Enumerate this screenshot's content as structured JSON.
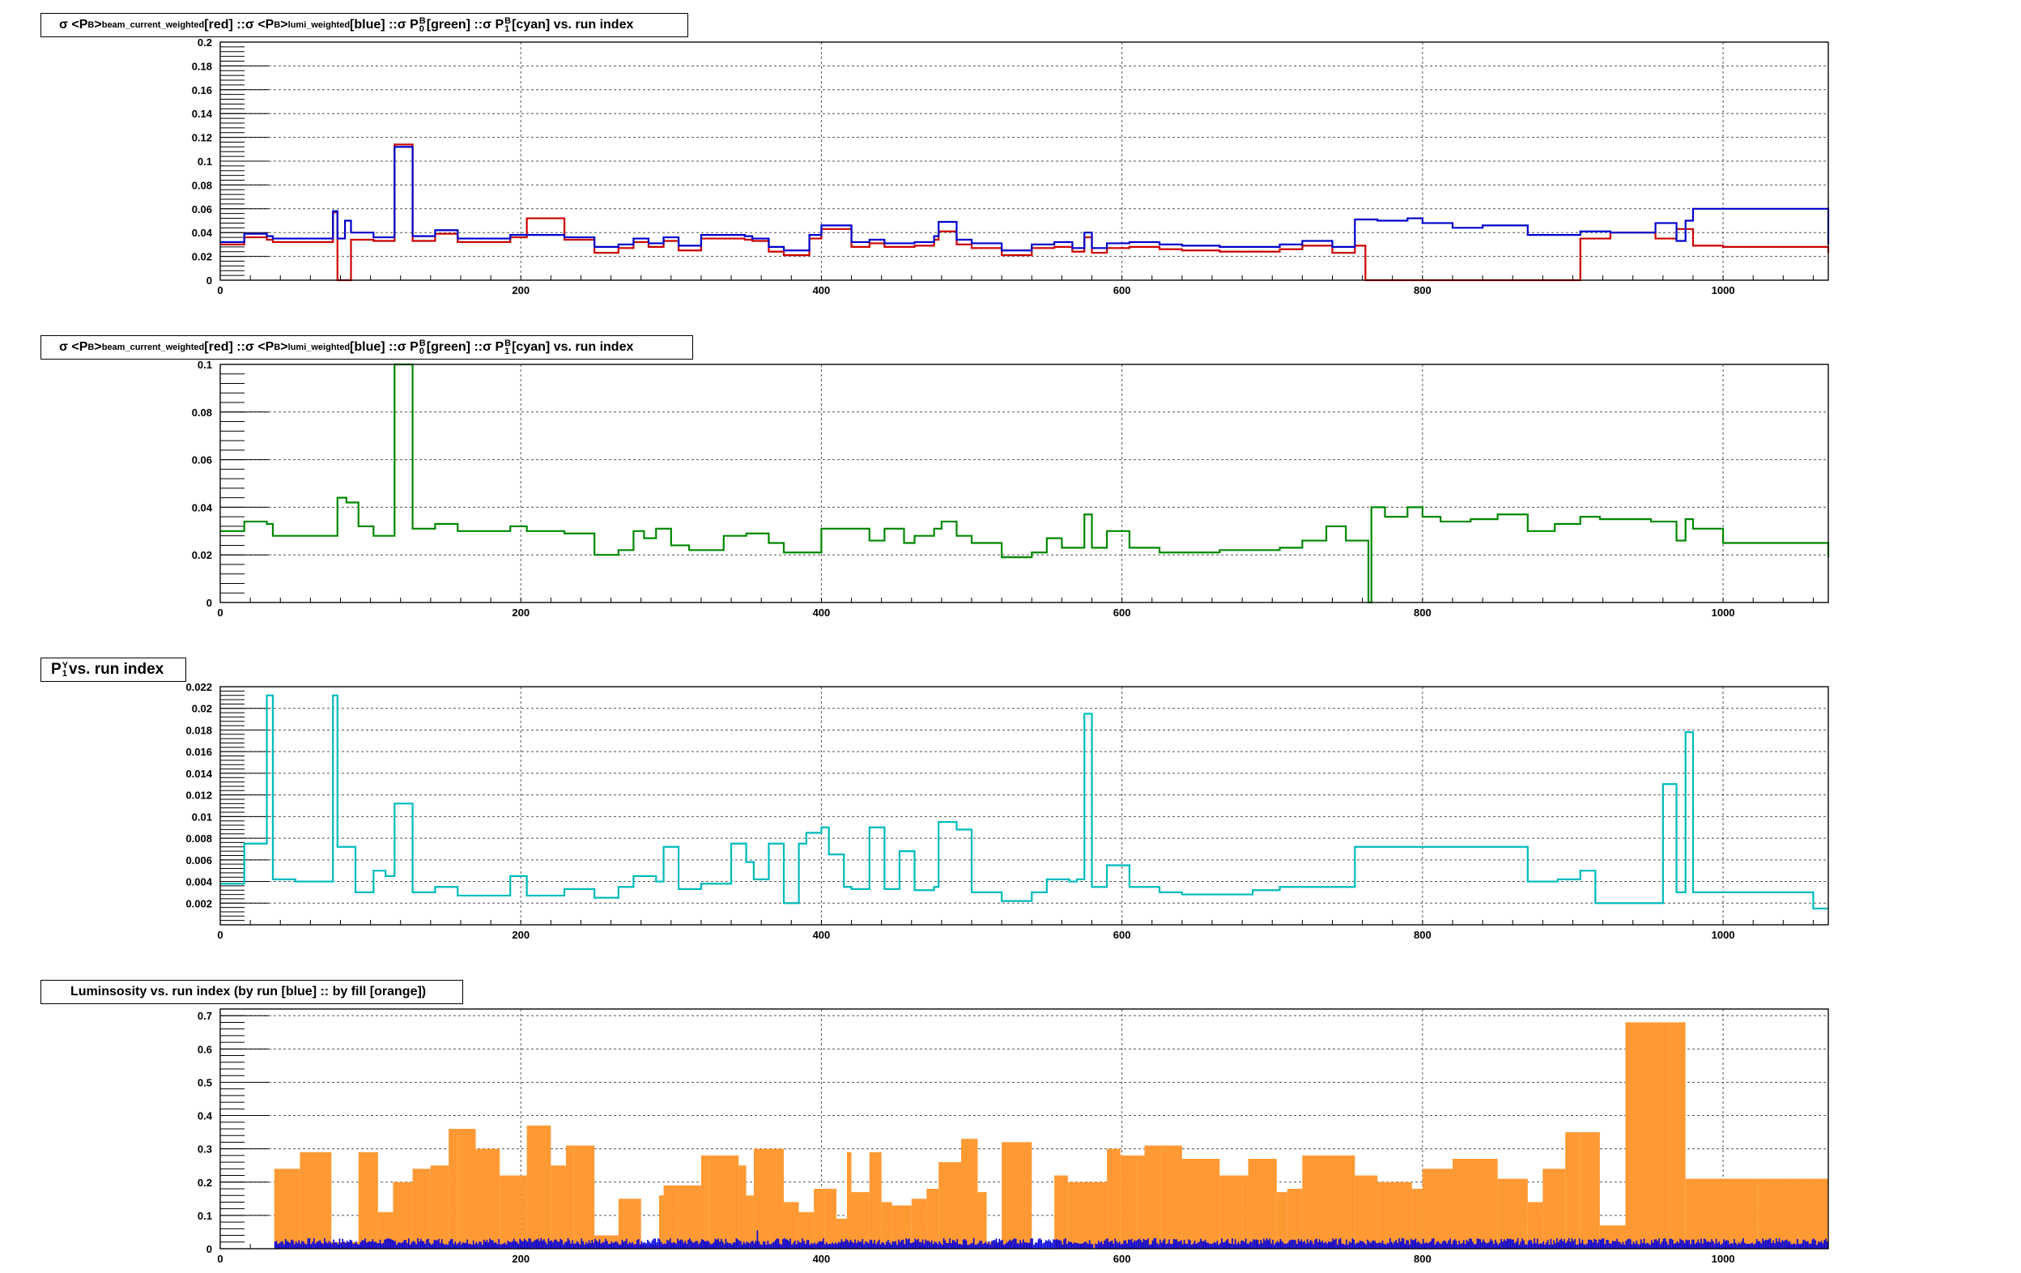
{
  "chart_data": [
    {
      "type": "line",
      "title": "σ <P^B>_beam_current_weighted[red] :: σ <P^B>_lumi_weighted[blue] :: σ P^B_0[green] :: σ P^B_1[cyan] vs. run index",
      "title_parts": {
        "sigma": "σ",
        "P": "P",
        "B": "B",
        "bcw": "beam_current_weighted",
        "lw": "lumi_weighted",
        "red": "[red] :: ",
        "blue": "[blue] :: ",
        "green": "[green] :: ",
        "cyan": "[cyan] vs. run index",
        "zero": "0",
        "one": "1"
      },
      "xlim": [
        0,
        1070
      ],
      "ylim": [
        0,
        0.2
      ],
      "xticks": [
        "0",
        "200",
        "400",
        "600",
        "800",
        "1000"
      ],
      "yticks": [
        "0",
        "0.02",
        "0.04",
        "0.06",
        "0.08",
        "0.1",
        "0.12",
        "0.14",
        "0.16",
        "0.18",
        "0.2"
      ],
      "grid": true,
      "colors": {
        "red": "#cc0000",
        "blue": "#0000cc"
      },
      "series": [
        {
          "name": "red",
          "color": "#cc0000",
          "x": [
            0,
            16,
            31,
            35,
            50,
            75,
            78,
            87,
            102,
            116,
            128,
            143,
            158,
            193,
            204,
            229,
            249,
            265,
            275,
            285,
            295,
            305,
            320,
            349,
            354,
            365,
            375,
            392,
            400,
            420,
            432,
            442,
            462,
            475,
            478,
            490,
            500,
            520,
            540,
            555,
            567,
            575,
            580,
            590,
            605,
            625,
            640,
            665,
            705,
            720,
            740,
            755,
            762,
            770,
            780,
            800,
            870,
            905,
            925,
            955,
            969,
            980,
            1000,
            1040,
            1070
          ],
          "y": [
            0.03,
            0.036,
            0.034,
            0.032,
            0.032,
            0.057,
            0.0,
            0.034,
            0.033,
            0.114,
            0.033,
            0.039,
            0.032,
            0.036,
            0.052,
            0.034,
            0.023,
            0.027,
            0.032,
            0.028,
            0.033,
            0.025,
            0.035,
            0.034,
            0.033,
            0.024,
            0.021,
            0.035,
            0.043,
            0.028,
            0.031,
            0.028,
            0.029,
            0.034,
            0.041,
            0.03,
            0.027,
            0.021,
            0.027,
            0.028,
            0.024,
            0.036,
            0.023,
            0.027,
            0.028,
            0.026,
            0.025,
            0.024,
            0.026,
            0.029,
            0.023,
            0.029,
            0.0,
            0.0,
            0.0,
            0.0,
            0.0,
            0.035,
            0.04,
            0.035,
            0.043,
            0.029,
            0.028,
            0.028,
            0.023
          ]
        },
        {
          "name": "blue",
          "color": "#0000cc",
          "x": [
            0,
            16,
            31,
            35,
            50,
            75,
            78,
            83,
            87,
            102,
            116,
            128,
            143,
            158,
            193,
            204,
            229,
            249,
            265,
            275,
            285,
            295,
            305,
            320,
            349,
            354,
            365,
            375,
            392,
            400,
            420,
            432,
            442,
            462,
            475,
            478,
            490,
            500,
            520,
            540,
            555,
            567,
            575,
            580,
            590,
            605,
            625,
            640,
            665,
            705,
            720,
            740,
            755,
            770,
            790,
            800,
            820,
            840,
            870,
            905,
            925,
            955,
            969,
            975,
            980,
            1000,
            1040,
            1070
          ],
          "y": [
            0.032,
            0.039,
            0.037,
            0.035,
            0.035,
            0.058,
            0.035,
            0.05,
            0.04,
            0.036,
            0.112,
            0.037,
            0.042,
            0.035,
            0.038,
            0.038,
            0.036,
            0.028,
            0.03,
            0.035,
            0.031,
            0.036,
            0.029,
            0.038,
            0.037,
            0.035,
            0.028,
            0.025,
            0.038,
            0.046,
            0.032,
            0.034,
            0.031,
            0.032,
            0.037,
            0.049,
            0.034,
            0.031,
            0.025,
            0.03,
            0.032,
            0.027,
            0.04,
            0.027,
            0.031,
            0.032,
            0.03,
            0.029,
            0.028,
            0.03,
            0.033,
            0.028,
            0.051,
            0.05,
            0.052,
            0.048,
            0.044,
            0.046,
            0.038,
            0.041,
            0.04,
            0.048,
            0.033,
            0.05,
            0.06,
            0.06,
            0.06,
            0.03
          ]
        }
      ]
    },
    {
      "type": "line",
      "title": "σ <P^B>_beam_current_weighted[red] :: σ <P^B>_lumi_weighted[blue] :: σ P^B_0[green] :: σ P^B_1[cyan] vs. run index",
      "xlim": [
        0,
        1070
      ],
      "ylim": [
        0,
        0.1
      ],
      "xticks": [
        "0",
        "200",
        "400",
        "600",
        "800",
        "1000"
      ],
      "yticks": [
        "0",
        "0.02",
        "0.04",
        "0.06",
        "0.08",
        "0.1"
      ],
      "grid": true,
      "series": [
        {
          "name": "green",
          "color": "#008800",
          "x": [
            0,
            16,
            31,
            35,
            75,
            78,
            84,
            92,
            102,
            116,
            128,
            143,
            158,
            193,
            204,
            229,
            249,
            265,
            275,
            282,
            290,
            300,
            312,
            335,
            350,
            365,
            375,
            400,
            432,
            442,
            455,
            462,
            475,
            480,
            490,
            500,
            520,
            540,
            550,
            560,
            575,
            580,
            590,
            605,
            625,
            640,
            665,
            705,
            720,
            736,
            749,
            764,
            766,
            775,
            790,
            800,
            812,
            832,
            850,
            870,
            888,
            905,
            918,
            935,
            952,
            969,
            975,
            980,
            1000,
            1060,
            1070
          ],
          "y": [
            0.03,
            0.034,
            0.033,
            0.028,
            0.028,
            0.044,
            0.042,
            0.032,
            0.028,
            0.1,
            0.031,
            0.033,
            0.03,
            0.032,
            0.03,
            0.029,
            0.02,
            0.022,
            0.03,
            0.027,
            0.031,
            0.024,
            0.022,
            0.028,
            0.029,
            0.025,
            0.021,
            0.031,
            0.026,
            0.031,
            0.025,
            0.028,
            0.031,
            0.034,
            0.028,
            0.025,
            0.019,
            0.021,
            0.027,
            0.023,
            0.037,
            0.023,
            0.03,
            0.023,
            0.021,
            0.021,
            0.022,
            0.023,
            0.026,
            0.032,
            0.026,
            0.0,
            0.04,
            0.036,
            0.04,
            0.036,
            0.034,
            0.035,
            0.037,
            0.03,
            0.033,
            0.036,
            0.035,
            0.035,
            0.034,
            0.026,
            0.035,
            0.031,
            0.025,
            0.025,
            0.019
          ]
        }
      ]
    },
    {
      "type": "line",
      "title": "P^Y_1 vs. run index",
      "title_parts": {
        "P": "P",
        "Y": "Y",
        "one": "1",
        "rest": " vs. run index"
      },
      "xlim": [
        0,
        1070
      ],
      "ylim": [
        0,
        0.022
      ],
      "xticks": [
        "0",
        "200",
        "400",
        "600",
        "800",
        "1000"
      ],
      "yticks": [
        "0.002",
        "0.004",
        "0.006",
        "0.008",
        "0.01",
        "0.012",
        "0.014",
        "0.016",
        "0.018",
        "0.02",
        "0.022"
      ],
      "grid": true,
      "series": [
        {
          "name": "cyan",
          "color": "#00bbbb",
          "x": [
            0,
            16,
            31,
            35,
            50,
            75,
            78,
            90,
            102,
            110,
            116,
            128,
            143,
            158,
            193,
            204,
            229,
            249,
            265,
            275,
            280,
            290,
            295,
            305,
            320,
            340,
            350,
            355,
            365,
            375,
            385,
            390,
            400,
            405,
            415,
            420,
            432,
            442,
            452,
            462,
            475,
            478,
            490,
            500,
            520,
            540,
            550,
            565,
            570,
            575,
            580,
            590,
            605,
            625,
            640,
            665,
            687,
            705,
            725,
            755,
            800,
            870,
            890,
            905,
            915,
            925,
            955,
            960,
            969,
            975,
            980,
            1000,
            1040,
            1060,
            1070
          ],
          "y": [
            0.0038,
            0.0075,
            0.0212,
            0.0042,
            0.004,
            0.0212,
            0.0072,
            0.003,
            0.005,
            0.0045,
            0.0112,
            0.003,
            0.0035,
            0.0027,
            0.0045,
            0.0027,
            0.0033,
            0.0025,
            0.0035,
            0.0045,
            0.0045,
            0.004,
            0.0072,
            0.0033,
            0.0038,
            0.0075,
            0.0058,
            0.0042,
            0.0075,
            0.002,
            0.0075,
            0.0085,
            0.009,
            0.0065,
            0.0035,
            0.0033,
            0.009,
            0.0033,
            0.0068,
            0.0032,
            0.0035,
            0.0095,
            0.0088,
            0.003,
            0.0022,
            0.003,
            0.0042,
            0.004,
            0.0042,
            0.0195,
            0.0035,
            0.0055,
            0.0035,
            0.003,
            0.0028,
            0.0028,
            0.0032,
            0.0035,
            0.0035,
            0.0072,
            0.0072,
            0.004,
            0.0042,
            0.005,
            0.002,
            0.002,
            0.002,
            0.013,
            0.003,
            0.0178,
            0.003,
            0.003,
            0.003,
            0.0015,
            0.0015
          ]
        }
      ]
    },
    {
      "type": "bar",
      "title": "Luminsosity vs. run index (by run [blue] :: by fill [orange])",
      "xlim": [
        0,
        1070
      ],
      "ylim": [
        0,
        0.72
      ],
      "xticks": [
        "0",
        "200",
        "400",
        "600",
        "800",
        "1000"
      ],
      "yticks": [
        "0",
        "0.1",
        "0.2",
        "0.3",
        "0.4",
        "0.5",
        "0.6",
        "0.7"
      ],
      "grid": true,
      "series": [
        {
          "name": "by fill",
          "color": "#ff9933",
          "x": [
            36,
            53,
            74,
            80,
            92,
            105,
            115,
            128,
            140,
            152,
            158,
            170,
            186,
            200,
            204,
            220,
            230,
            235,
            249,
            265,
            280,
            292,
            295,
            305,
            320,
            325,
            345,
            350,
            355,
            365,
            375,
            385,
            395,
            402,
            410,
            417,
            420,
            432,
            440,
            447,
            460,
            470,
            478,
            493,
            504,
            510,
            520,
            540,
            555,
            564,
            580,
            590,
            599,
            610,
            615,
            626,
            640,
            665,
            680,
            684,
            703,
            710,
            720,
            755,
            770,
            793,
            800,
            820,
            850,
            870,
            880,
            895,
            905,
            918,
            935,
            955,
            965,
            975,
            980,
            1000,
            1023,
            1035,
            1050,
            1060,
            1070
          ],
          "y": [
            0.24,
            0.29,
            0.02,
            0.02,
            0.29,
            0.11,
            0.2,
            0.24,
            0.25,
            0.36,
            0.36,
            0.3,
            0.22,
            0.22,
            0.37,
            0.25,
            0.31,
            0.31,
            0.04,
            0.15,
            0.01,
            0.16,
            0.19,
            0.19,
            0.28,
            0.28,
            0.25,
            0.16,
            0.3,
            0.3,
            0.14,
            0.11,
            0.18,
            0.18,
            0.09,
            0.29,
            0.17,
            0.29,
            0.14,
            0.13,
            0.15,
            0.18,
            0.26,
            0.33,
            0.17,
            0.02,
            0.32,
            0.0,
            0.22,
            0.2,
            0.2,
            0.3,
            0.28,
            0.28,
            0.31,
            0.31,
            0.27,
            0.22,
            0.22,
            0.27,
            0.17,
            0.18,
            0.28,
            0.22,
            0.2,
            0.18,
            0.24,
            0.27,
            0.21,
            0.14,
            0.24,
            0.35,
            0.35,
            0.07,
            0.68,
            0.68,
            0.68,
            0.21,
            0.21,
            0.21,
            0.21,
            0.21,
            0.21,
            0.21,
            0.21
          ]
        },
        {
          "name": "by run",
          "color": "#0000dd"
        }
      ]
    }
  ]
}
